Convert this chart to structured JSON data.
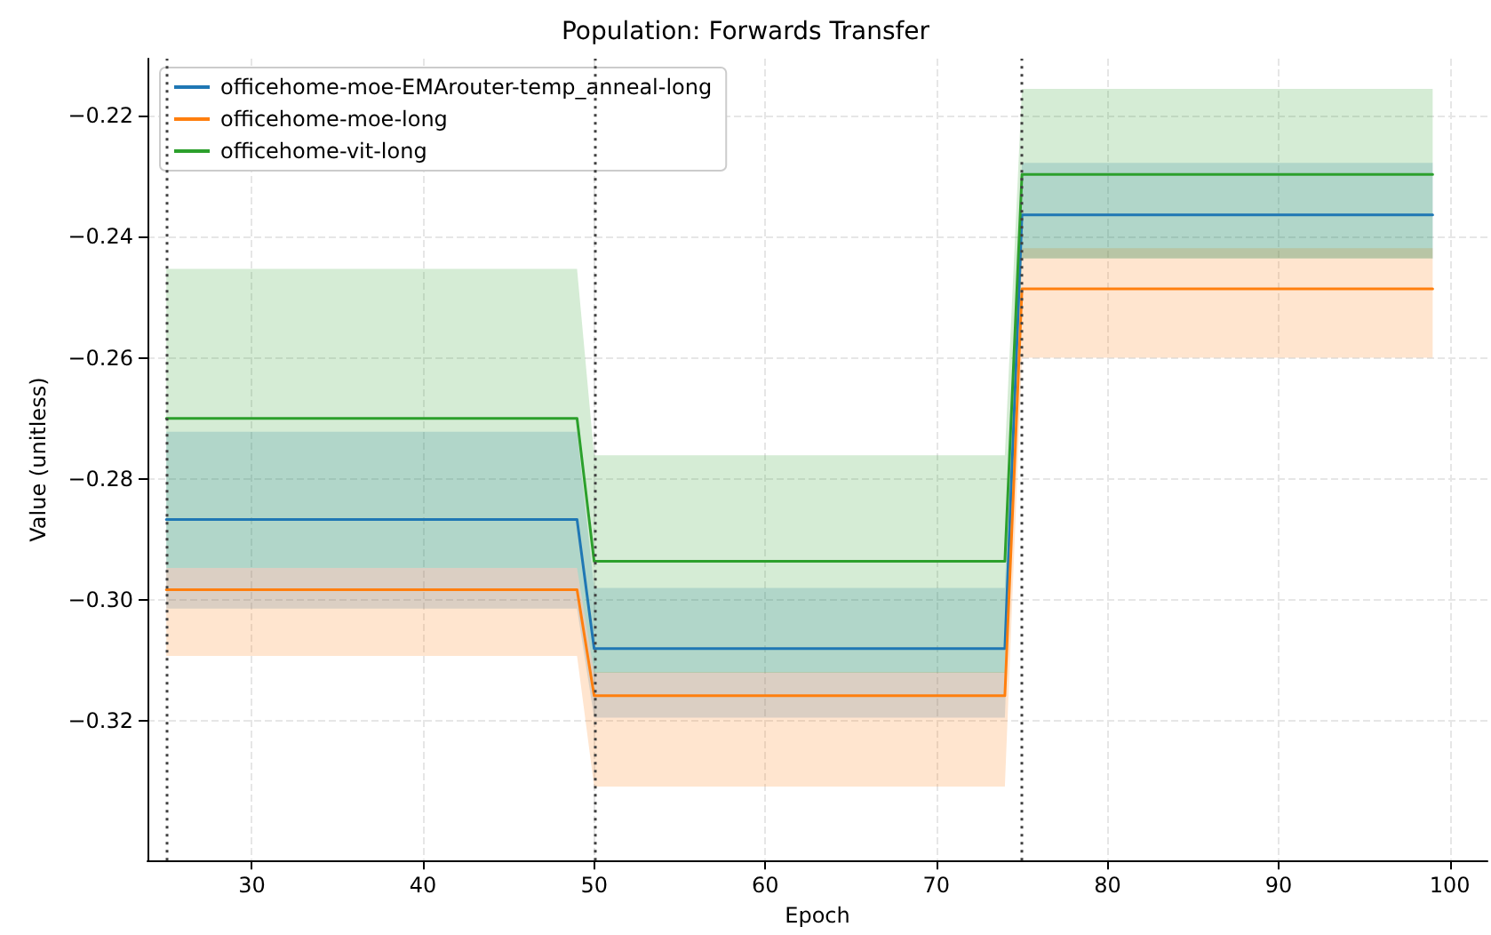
{
  "chart_data": {
    "type": "line",
    "title": "Population: Forwards Transfer",
    "xlabel": "Epoch",
    "ylabel": "Value (unitless)",
    "x": [
      25,
      49,
      50,
      74,
      75,
      99
    ],
    "series": [
      {
        "name": "officehome-moe-EMArouter-temp_anneal-long",
        "color": "#1f77b4",
        "values": [
          -0.2867,
          -0.2867,
          -0.308,
          -0.308,
          -0.2364,
          -0.2364
        ],
        "lower": [
          -0.3014,
          -0.3014,
          -0.3194,
          -0.3194,
          -0.2436,
          -0.2436
        ],
        "upper": [
          -0.2722,
          -0.2722,
          -0.298,
          -0.298,
          -0.2278,
          -0.2278
        ]
      },
      {
        "name": "officehome-moe-long",
        "color": "#ff7f0e",
        "values": [
          -0.2983,
          -0.2983,
          -0.3158,
          -0.3158,
          -0.2486,
          -0.2486
        ],
        "lower": [
          -0.3092,
          -0.3092,
          -0.3308,
          -0.3308,
          -0.26,
          -0.26
        ],
        "upper": [
          -0.2947,
          -0.2947,
          -0.3119,
          -0.3119,
          -0.2419,
          -0.2419
        ]
      },
      {
        "name": "officehome-vit-long",
        "color": "#2ca02c",
        "values": [
          -0.27,
          -0.27,
          -0.2936,
          -0.2936,
          -0.2297,
          -0.2297
        ],
        "lower": [
          -0.2947,
          -0.2947,
          -0.312,
          -0.312,
          -0.2436,
          -0.2436
        ],
        "upper": [
          -0.2453,
          -0.2453,
          -0.2761,
          -0.2761,
          -0.2156,
          -0.2156
        ]
      }
    ],
    "xlim": [
      23.9,
      102.2
    ],
    "xticks": [
      30,
      40,
      50,
      60,
      70,
      80,
      90,
      100
    ],
    "ylim": [
      -0.343,
      -0.2106
    ],
    "yticks": [
      {
        "value": -0.32,
        "label": "−0.32"
      },
      {
        "value": -0.3,
        "label": "−0.30"
      },
      {
        "value": -0.28,
        "label": "−0.28"
      },
      {
        "value": -0.26,
        "label": "−0.26"
      },
      {
        "value": -0.24,
        "label": "−0.24"
      },
      {
        "value": -0.22,
        "label": "−0.22"
      }
    ],
    "ref_lines": [
      {
        "axis": "x",
        "value": 25,
        "color": "#404040",
        "line_style": "dotted"
      },
      {
        "axis": "x",
        "value": 50,
        "color": "#404040",
        "line_style": "dotted"
      },
      {
        "axis": "x",
        "value": 75,
        "color": "#404040",
        "line_style": "dotted"
      }
    ],
    "grid": true,
    "legend": "top left",
    "marker": "none",
    "line_style": "solid"
  }
}
